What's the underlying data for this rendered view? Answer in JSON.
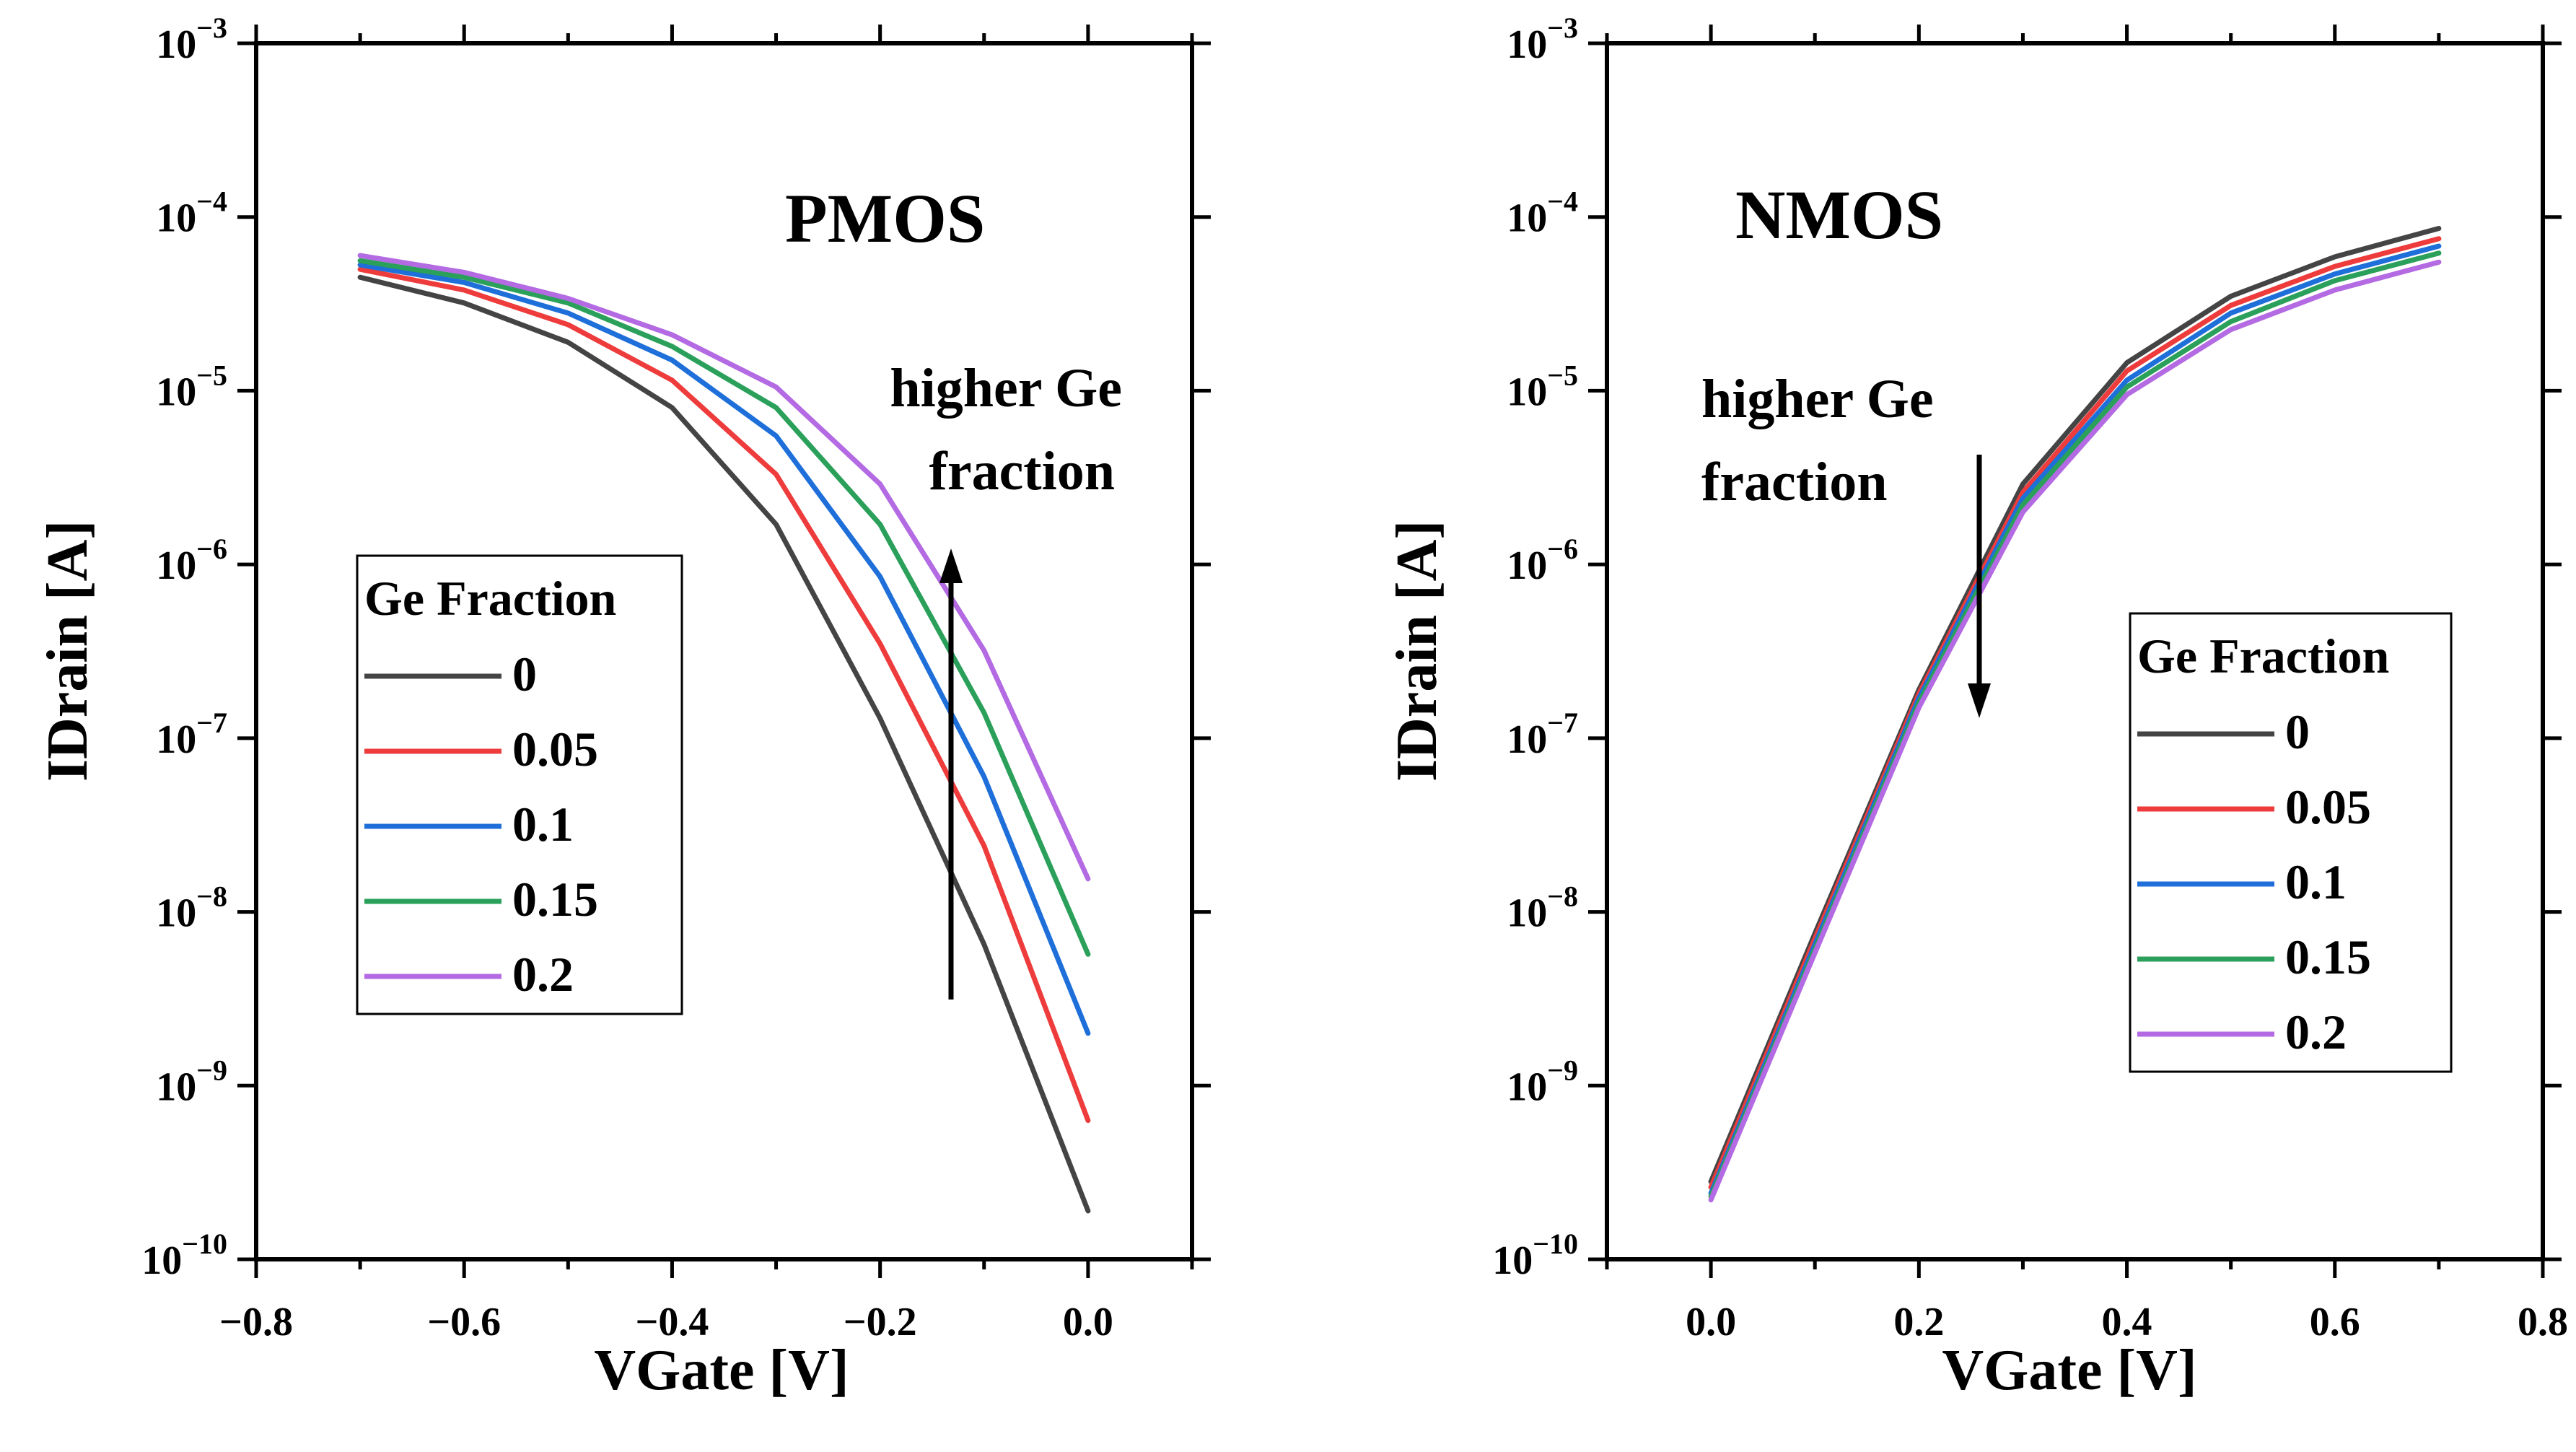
{
  "chart_data": [
    {
      "type": "line",
      "title": "PMOS",
      "xlabel": "VGate [V]",
      "ylabel": "IDrain [A]",
      "xlim": [
        -0.8,
        0.1
      ],
      "ylim_exp": [
        -10,
        -3
      ],
      "yscale": "log",
      "xticks": [
        -0.8,
        -0.6,
        -0.4,
        -0.2,
        0.0
      ],
      "xtick_labels": [
        "−0.8",
        "−0.6",
        "−0.4",
        "−0.2",
        "0.0"
      ],
      "ytick_exps": [
        -3,
        -4,
        -5,
        -6,
        -7,
        -8,
        -9,
        -10
      ],
      "ytick_base": "10",
      "ytick_sups": [
        "−3",
        "−4",
        "−5",
        "−6",
        "−7",
        "−8",
        "−9",
        "−10"
      ],
      "legend_title": "Ge Fraction",
      "legend_position": "center-left",
      "annotation": {
        "lines": [
          "higher Ge",
          "fraction"
        ],
        "direction": "up"
      },
      "x": [
        -0.7,
        -0.6,
        -0.5,
        -0.4,
        -0.3,
        -0.2,
        -0.1,
        0.0
      ],
      "series": [
        {
          "name": "0",
          "color": "#444444",
          "values": [
            4.5e-05,
            3.2e-05,
            1.9e-05,
            8e-06,
            1.7e-06,
            1.3e-07,
            6.5e-09,
            1.9e-10
          ]
        },
        {
          "name": "0.05",
          "color": "#ee3b3b",
          "values": [
            5e-05,
            3.8e-05,
            2.4e-05,
            1.15e-05,
            3.3e-06,
            3.5e-07,
            2.4e-08,
            6.3e-10
          ]
        },
        {
          "name": "0.1",
          "color": "#1e6fd9",
          "values": [
            5.3e-05,
            4.2e-05,
            2.8e-05,
            1.5e-05,
            5.5e-06,
            8.5e-07,
            6e-08,
            2e-09
          ]
        },
        {
          "name": "0.15",
          "color": "#2aa05a",
          "values": [
            5.6e-05,
            4.5e-05,
            3.2e-05,
            1.8e-05,
            8e-06,
            1.7e-06,
            1.4e-07,
            5.7e-09
          ]
        },
        {
          "name": "0.2",
          "color": "#b36ae2",
          "values": [
            6e-05,
            4.8e-05,
            3.4e-05,
            2.1e-05,
            1.05e-05,
            2.9e-06,
            3.2e-07,
            1.55e-08
          ]
        }
      ]
    },
    {
      "type": "line",
      "title": "NMOS",
      "xlabel": "VGate [V]",
      "ylabel": "IDrain [A]",
      "xlim": [
        -0.1,
        0.8
      ],
      "ylim_exp": [
        -10,
        -3
      ],
      "yscale": "log",
      "xticks": [
        0.0,
        0.2,
        0.4,
        0.6,
        0.8
      ],
      "xtick_labels": [
        "0.0",
        "0.2",
        "0.4",
        "0.6",
        "0.8"
      ],
      "ytick_exps": [
        -3,
        -4,
        -5,
        -6,
        -7,
        -8,
        -9,
        -10
      ],
      "ytick_base": "10",
      "ytick_sups": [
        "−3",
        "−4",
        "−5",
        "−6",
        "−7",
        "−8",
        "−9",
        "−10"
      ],
      "legend_title": "Ge Fraction",
      "legend_position": "center-right",
      "annotation": {
        "lines": [
          "higher Ge",
          "fraction"
        ],
        "direction": "down"
      },
      "x": [
        0.0,
        0.1,
        0.2,
        0.3,
        0.4,
        0.5,
        0.6,
        0.7
      ],
      "series": [
        {
          "name": "0",
          "color": "#444444",
          "values": [
            2.8e-10,
            7.5e-09,
            1.9e-07,
            2.9e-06,
            1.45e-05,
            3.5e-05,
            5.9e-05,
            8.6e-05
          ]
        },
        {
          "name": "0.05",
          "color": "#ee3b3b",
          "values": [
            2.6e-10,
            7e-09,
            1.8e-07,
            2.6e-06,
            1.3e-05,
            3.1e-05,
            5.2e-05,
            7.5e-05
          ]
        },
        {
          "name": "0.1",
          "color": "#1e6fd9",
          "values": [
            2.4e-10,
            6.5e-09,
            1.7e-07,
            2.4e-06,
            1.15e-05,
            2.8e-05,
            4.7e-05,
            6.8e-05
          ]
        },
        {
          "name": "0.15",
          "color": "#2aa05a",
          "values": [
            2.3e-10,
            6.1e-09,
            1.6e-07,
            2.2e-06,
            1.05e-05,
            2.5e-05,
            4.3e-05,
            6.2e-05
          ]
        },
        {
          "name": "0.2",
          "color": "#b36ae2",
          "values": [
            2.2e-10,
            5.8e-09,
            1.5e-07,
            2e-06,
            9.5e-06,
            2.25e-05,
            3.8e-05,
            5.5e-05
          ]
        }
      ]
    }
  ]
}
